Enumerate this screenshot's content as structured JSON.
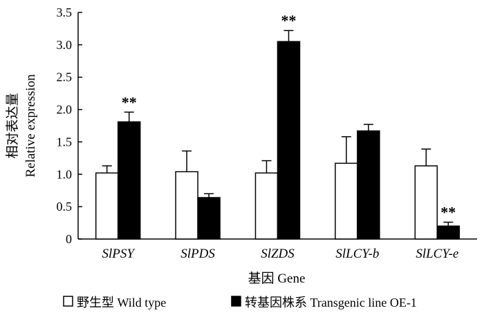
{
  "chart_data": {
    "type": "bar",
    "ylabel_zh": "相对表达量",
    "ylabel": "Relative expression",
    "xlabel": "基因 Gene",
    "categories": [
      "SlPSY",
      "SlPDS",
      "SlZDS",
      "SlLCY-b",
      "SlLCY-e"
    ],
    "yticks": [
      "0",
      "0.5",
      "1.0",
      "1.5",
      "2.0",
      "2.5",
      "3.0",
      "3.5"
    ],
    "ylim": [
      0,
      3.5
    ],
    "grid": false,
    "legend_position": "bottom",
    "series": [
      {
        "name": "野生型 Wild type",
        "fill": "#ffffff",
        "values": [
          1.02,
          1.04,
          1.02,
          1.17,
          1.13
        ],
        "errors": [
          0.11,
          0.32,
          0.19,
          0.41,
          0.26
        ]
      },
      {
        "name": "转基因株系 Transgenic line OE-1",
        "fill": "#000000",
        "values": [
          1.81,
          0.64,
          3.05,
          1.67,
          0.2
        ],
        "errors": [
          0.15,
          0.06,
          0.17,
          0.1,
          0.06
        ]
      }
    ],
    "significance": [
      "**",
      "",
      "**",
      "",
      "**"
    ]
  }
}
